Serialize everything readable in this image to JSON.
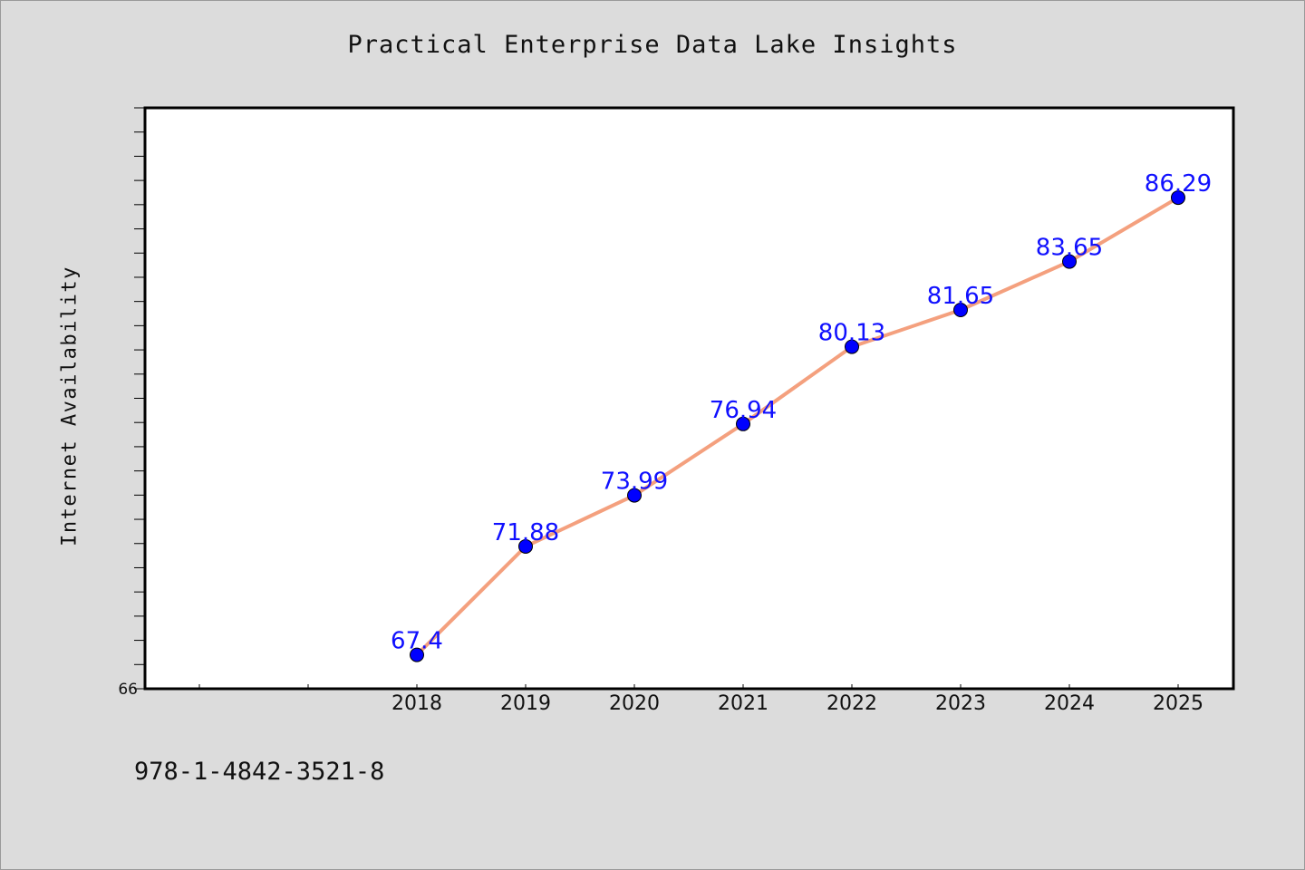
{
  "chart_data": {
    "type": "line",
    "title": "Practical Enterprise Data Lake Insights",
    "xlabel": "",
    "ylabel": "Internet Availability",
    "x": [
      "2018",
      "2019",
      "2020",
      "2021",
      "2022",
      "2023",
      "2024",
      "2025"
    ],
    "series": [
      {
        "values": [
          67.4,
          71.88,
          73.99,
          76.94,
          80.13,
          81.65,
          83.65,
          86.29
        ],
        "line_color": "#f4a07e",
        "marker_color": "#0000ff",
        "label_color": "#1010ff"
      }
    ],
    "ylim": [
      66,
      90
    ],
    "y_tick_labels": [
      "66"
    ],
    "grid": false,
    "legend": "none"
  },
  "footer": {
    "isbn": "978-1-4842-3521-8"
  },
  "colors": {
    "background": "#dcdcdc",
    "plot_background": "#ffffff",
    "axis": "#000000"
  }
}
